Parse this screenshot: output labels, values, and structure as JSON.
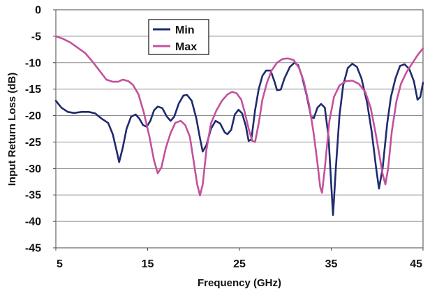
{
  "chart_data": {
    "type": "line",
    "xlabel": "Frequency (GHz)",
    "ylabel": "Input Return Loss (dB)",
    "xlim": [
      5,
      45
    ],
    "ylim": [
      -45,
      0
    ],
    "xticks": [
      5,
      15,
      25,
      35,
      45
    ],
    "yticks": [
      0,
      -5,
      -10,
      -15,
      -20,
      -25,
      -30,
      -35,
      -40,
      -45
    ],
    "grid": "horizontal",
    "legend_position": "upper-center",
    "series": [
      {
        "name": "Min",
        "color": "#1f2a6e",
        "points": [
          [
            5,
            -17.2
          ],
          [
            5.6,
            -18.5
          ],
          [
            6.3,
            -19.3
          ],
          [
            7,
            -19.5
          ],
          [
            7.8,
            -19.3
          ],
          [
            8.6,
            -19.3
          ],
          [
            9.3,
            -19.6
          ],
          [
            10,
            -20.6
          ],
          [
            10.7,
            -21.4
          ],
          [
            11.2,
            -23.5
          ],
          [
            11.6,
            -26.5
          ],
          [
            11.9,
            -28.8
          ],
          [
            12.3,
            -26
          ],
          [
            12.7,
            -22.5
          ],
          [
            13.2,
            -20.2
          ],
          [
            13.7,
            -19.8
          ],
          [
            14.1,
            -20.6
          ],
          [
            14.5,
            -21.8
          ],
          [
            14.9,
            -22.1
          ],
          [
            15.3,
            -21
          ],
          [
            15.7,
            -19
          ],
          [
            16.1,
            -18.3
          ],
          [
            16.6,
            -18.6
          ],
          [
            17.1,
            -20.2
          ],
          [
            17.5,
            -21
          ],
          [
            17.9,
            -20.2
          ],
          [
            18.4,
            -17.7
          ],
          [
            18.9,
            -16.2
          ],
          [
            19.3,
            -16.1
          ],
          [
            19.8,
            -17.2
          ],
          [
            20.3,
            -20.5
          ],
          [
            20.7,
            -24.3
          ],
          [
            21,
            -26.8
          ],
          [
            21.4,
            -25.6
          ],
          [
            21.9,
            -22.5
          ],
          [
            22.4,
            -21
          ],
          [
            22.9,
            -21.5
          ],
          [
            23.4,
            -23.2
          ],
          [
            23.7,
            -23.5
          ],
          [
            24.1,
            -22.7
          ],
          [
            24.5,
            -19.8
          ],
          [
            24.9,
            -18.9
          ],
          [
            25.3,
            -19.6
          ],
          [
            25.7,
            -22
          ],
          [
            26,
            -24.8
          ],
          [
            26.3,
            -24.5
          ],
          [
            26.7,
            -19
          ],
          [
            27.1,
            -15
          ],
          [
            27.5,
            -12.5
          ],
          [
            27.9,
            -11.5
          ],
          [
            28.4,
            -11.5
          ],
          [
            28.8,
            -13.5
          ],
          [
            29.1,
            -15.2
          ],
          [
            29.5,
            -15.1
          ],
          [
            29.9,
            -13
          ],
          [
            30.5,
            -10.8
          ],
          [
            31,
            -10
          ],
          [
            31.4,
            -10.5
          ],
          [
            31.8,
            -12.5
          ],
          [
            32.3,
            -16
          ],
          [
            32.8,
            -20.2
          ],
          [
            33.1,
            -20.5
          ],
          [
            33.5,
            -18.5
          ],
          [
            33.9,
            -17.8
          ],
          [
            34.3,
            -18.5
          ],
          [
            34.7,
            -24
          ],
          [
            35,
            -33
          ],
          [
            35.2,
            -38.8
          ],
          [
            35.5,
            -30
          ],
          [
            35.9,
            -20
          ],
          [
            36.3,
            -14.3
          ],
          [
            36.8,
            -11
          ],
          [
            37.3,
            -10.2
          ],
          [
            37.8,
            -10.8
          ],
          [
            38.3,
            -13
          ],
          [
            38.9,
            -17.5
          ],
          [
            39.4,
            -23
          ],
          [
            39.9,
            -30
          ],
          [
            40.2,
            -33.8
          ],
          [
            40.6,
            -30
          ],
          [
            41.1,
            -21.5
          ],
          [
            41.5,
            -16.5
          ],
          [
            42,
            -13
          ],
          [
            42.5,
            -10.6
          ],
          [
            43,
            -10.3
          ],
          [
            43.5,
            -11.2
          ],
          [
            44,
            -13.5
          ],
          [
            44.4,
            -17
          ],
          [
            44.7,
            -16.5
          ],
          [
            45,
            -13.8
          ]
        ]
      },
      {
        "name": "Max",
        "color": "#c4519b",
        "points": [
          [
            5,
            -5
          ],
          [
            5.8,
            -5.5
          ],
          [
            6.6,
            -6.2
          ],
          [
            7.4,
            -7.2
          ],
          [
            8.2,
            -8.2
          ],
          [
            9,
            -9.8
          ],
          [
            9.8,
            -11.6
          ],
          [
            10.5,
            -13.2
          ],
          [
            11.2,
            -13.6
          ],
          [
            11.8,
            -13.6
          ],
          [
            12.3,
            -13.2
          ],
          [
            12.9,
            -13.5
          ],
          [
            13.4,
            -14.2
          ],
          [
            14,
            -16
          ],
          [
            14.6,
            -19.5
          ],
          [
            15.2,
            -24
          ],
          [
            15.7,
            -28.5
          ],
          [
            16.1,
            -30.9
          ],
          [
            16.5,
            -29.8
          ],
          [
            17,
            -26
          ],
          [
            17.5,
            -23.3
          ],
          [
            18,
            -21.4
          ],
          [
            18.6,
            -21
          ],
          [
            19.1,
            -21.8
          ],
          [
            19.6,
            -24
          ],
          [
            20,
            -28.5
          ],
          [
            20.4,
            -33
          ],
          [
            20.7,
            -35.1
          ],
          [
            21,
            -33
          ],
          [
            21.4,
            -26.5
          ],
          [
            21.9,
            -21.5
          ],
          [
            22.5,
            -19
          ],
          [
            23.1,
            -17.2
          ],
          [
            23.7,
            -16
          ],
          [
            24.2,
            -15.5
          ],
          [
            24.7,
            -15.8
          ],
          [
            25.2,
            -17
          ],
          [
            25.6,
            -19.5
          ],
          [
            26,
            -22.5
          ],
          [
            26.4,
            -24.8
          ],
          [
            26.7,
            -25
          ],
          [
            27.1,
            -21.5
          ],
          [
            27.5,
            -17
          ],
          [
            28,
            -13.8
          ],
          [
            28.5,
            -11.5
          ],
          [
            29.1,
            -10
          ],
          [
            29.7,
            -9.3
          ],
          [
            30.3,
            -9.2
          ],
          [
            30.9,
            -9.5
          ],
          [
            31.5,
            -11
          ],
          [
            32,
            -13.5
          ],
          [
            32.6,
            -18
          ],
          [
            33.1,
            -23.5
          ],
          [
            33.5,
            -29
          ],
          [
            33.8,
            -33.5
          ],
          [
            34,
            -34.6
          ],
          [
            34.3,
            -30
          ],
          [
            34.8,
            -21
          ],
          [
            35.3,
            -16.5
          ],
          [
            35.9,
            -14.3
          ],
          [
            36.6,
            -13.5
          ],
          [
            37.3,
            -13.4
          ],
          [
            38,
            -14
          ],
          [
            38.7,
            -15.5
          ],
          [
            39.3,
            -18.5
          ],
          [
            39.8,
            -23
          ],
          [
            40.3,
            -28
          ],
          [
            40.6,
            -31
          ],
          [
            40.9,
            -33
          ],
          [
            41.2,
            -30
          ],
          [
            41.6,
            -23
          ],
          [
            42.1,
            -17.3
          ],
          [
            42.6,
            -14
          ],
          [
            43.2,
            -11.8
          ],
          [
            43.8,
            -10.2
          ],
          [
            44.4,
            -8.6
          ],
          [
            45,
            -7.3
          ]
        ]
      }
    ]
  }
}
